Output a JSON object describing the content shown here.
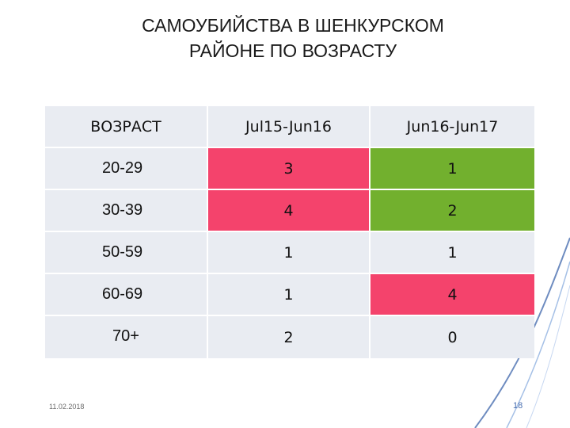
{
  "title": {
    "line1": "САМОУБИЙСТВА В ШЕНКУРСКОМ",
    "line2": "РАЙОНЕ ПО ВОЗРАСТУ"
  },
  "table": {
    "headers": [
      "ВОЗРАСТ",
      "Jul15-Jun16",
      "Jun16-Jun17"
    ],
    "rows": [
      {
        "age": "20-29",
        "v1": "3",
        "v2": "1",
        "v1_color": "#f4436c",
        "v2_color": "#72b02e"
      },
      {
        "age": "30-39",
        "v1": "4",
        "v2": "2",
        "v1_color": "#f4436c",
        "v2_color": "#72b02e"
      },
      {
        "age": "50-59",
        "v1": "1",
        "v2": "1",
        "v1_color": "#e9ecf2",
        "v2_color": "#e9ecf2"
      },
      {
        "age": "60-69",
        "v1": "1",
        "v2": "4",
        "v1_color": "#e9ecf2",
        "v2_color": "#f4436c"
      },
      {
        "age": "70+",
        "v1": "2",
        "v2": "0",
        "v1_color": "#e9ecf2",
        "v2_color": "#e9ecf2"
      }
    ]
  },
  "footer": {
    "date": "11.02.2018",
    "page": "18"
  },
  "colors": {
    "cell_light": "#e9ecf2",
    "bad": "#f4436c",
    "good": "#72b02e",
    "accent": "#4a6fb0"
  }
}
